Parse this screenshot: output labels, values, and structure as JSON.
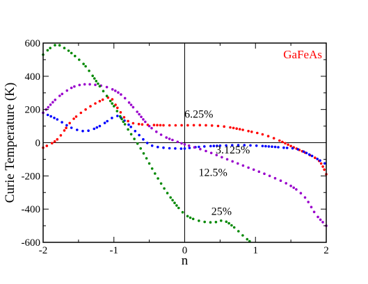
{
  "chart_data": {
    "type": "scatter",
    "title": "",
    "xlabel": "n",
    "ylabel": "Curie Temperature (K)",
    "xlim": [
      -2,
      2
    ],
    "ylim": [
      -600,
      600
    ],
    "xticks": [
      -2,
      -1,
      0,
      1,
      2
    ],
    "yticks": [
      -600,
      -400,
      -200,
      0,
      200,
      400,
      600
    ],
    "xtick_labels": [
      "-2",
      "-1",
      "0",
      "1",
      "2"
    ],
    "ytick_labels": [
      "-600",
      "-400",
      "-200",
      "0",
      "200",
      "400",
      "600"
    ],
    "grid": false,
    "reference_lines": {
      "horizontal_at": 0,
      "vertical_at": 0
    },
    "legend_text": "GaFeAs",
    "legend_color": "#ff0000",
    "series": [
      {
        "label": "6.25%",
        "color": "#ff0000",
        "x": [
          -2.0,
          -1.8,
          -1.6,
          -1.4,
          -1.2,
          -1.05,
          -0.95,
          -0.8,
          -0.6,
          -0.3,
          0.0,
          0.3,
          0.6,
          0.9,
          1.1,
          1.3,
          1.5,
          1.7,
          1.9,
          2.0
        ],
        "y": [
          -30,
          20,
          130,
          200,
          250,
          270,
          210,
          130,
          110,
          105,
          105,
          105,
          95,
          70,
          50,
          20,
          -20,
          -60,
          -110,
          -190
        ]
      },
      {
        "label": "3.125%",
        "color": "#0000ff",
        "x": [
          -2.0,
          -1.8,
          -1.6,
          -1.4,
          -1.2,
          -1.0,
          -0.9,
          -0.7,
          -0.5,
          -0.3,
          -0.1,
          0.0,
          0.2,
          0.5,
          0.8,
          1.1,
          1.4,
          1.6,
          1.8,
          2.0
        ],
        "y": [
          180,
          140,
          90,
          70,
          100,
          155,
          150,
          70,
          -10,
          -30,
          -35,
          -35,
          -25,
          -18,
          -15,
          -20,
          -30,
          -40,
          -80,
          -130
        ]
      },
      {
        "label": "12.5%",
        "color": "#9900cc",
        "x": [
          -2.0,
          -1.8,
          -1.6,
          -1.45,
          -1.3,
          -1.1,
          -0.9,
          -0.7,
          -0.5,
          -0.3,
          -0.1,
          0.0,
          0.3,
          0.6,
          0.9,
          1.2,
          1.5,
          1.7,
          1.85,
          2.0
        ],
        "y": [
          180,
          270,
          330,
          350,
          350,
          335,
          290,
          200,
          100,
          40,
          5,
          -10,
          -50,
          -100,
          -150,
          -200,
          -260,
          -330,
          -430,
          -500
        ]
      },
      {
        "label": "25%",
        "color": "#008800",
        "x": [
          -2.0,
          -1.9,
          -1.8,
          -1.7,
          -1.6,
          -1.4,
          -1.2,
          -1.0,
          -0.8,
          -0.6,
          -0.4,
          -0.2,
          0.0,
          0.2,
          0.4,
          0.55,
          0.7,
          0.85,
          1.0
        ],
        "y": [
          530,
          570,
          590,
          570,
          540,
          460,
          340,
          220,
          80,
          -50,
          -200,
          -330,
          -430,
          -470,
          -480,
          -470,
          -510,
          -570,
          -620
        ]
      }
    ],
    "annotations": [
      {
        "text": "6.25%",
        "x": 0.2,
        "y": 150
      },
      {
        "text": "3.125%",
        "x": 0.68,
        "y": -65
      },
      {
        "text": "12.5%",
        "x": 0.4,
        "y": -200
      },
      {
        "text": "25%",
        "x": 0.52,
        "y": -435
      }
    ]
  }
}
